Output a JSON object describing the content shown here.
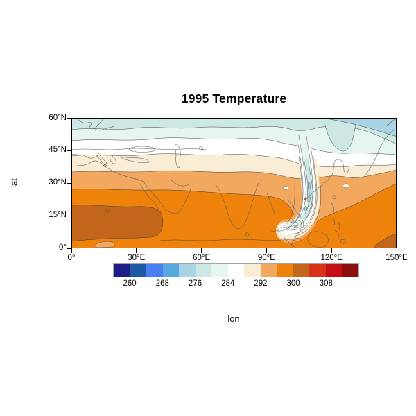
{
  "figure": {
    "title": "1995 Temperature",
    "xlabel": "lon",
    "ylabel": "lat"
  },
  "axes": {
    "x_ticks": [
      {
        "label": "0°",
        "lon": 0
      },
      {
        "label": "30°E",
        "lon": 30
      },
      {
        "label": "60°E",
        "lon": 60
      },
      {
        "label": "90°E",
        "lon": 90
      },
      {
        "label": "120°E",
        "lon": 120
      },
      {
        "label": "150°E",
        "lon": 150
      }
    ],
    "y_ticks": [
      {
        "label": "0°",
        "lat": 0
      },
      {
        "label": "15°N",
        "lat": 15
      },
      {
        "label": "30°N",
        "lat": 30
      },
      {
        "label": "45°N",
        "lat": 45
      },
      {
        "label": "60°N",
        "lat": 60
      }
    ]
  },
  "colorbar": {
    "labels": [
      "260",
      "268",
      "276",
      "284",
      "292",
      "300",
      "308"
    ],
    "levels": [
      256,
      260,
      264,
      268,
      272,
      276,
      280,
      284,
      288,
      292,
      296,
      300,
      304,
      308,
      312,
      316
    ],
    "colors": [
      "#1f1d87",
      "#1c5ba3",
      "#4a7ef2",
      "#57a9e0",
      "#aad3e5",
      "#cde8e4",
      "#e7f5f1",
      "#ffffff",
      "#f9edd5",
      "#f3a860",
      "#ee820a",
      "#c2661c",
      "#d93019",
      "#c50d15",
      "#8c0f0e"
    ]
  },
  "chart_data": {
    "type": "heatmap",
    "subtype": "filled-contour-map",
    "title": "1995 Temperature",
    "xlabel": "lon",
    "ylabel": "lat",
    "xlim": [
      0,
      150
    ],
    "ylim": [
      0,
      60
    ],
    "x_tick_labels": [
      "0°",
      "30°E",
      "60°E",
      "90°E",
      "120°E",
      "150°E"
    ],
    "y_tick_labels": [
      "0°",
      "15°N",
      "30°N",
      "45°N",
      "60°N"
    ],
    "contour_levels": [
      256,
      260,
      264,
      268,
      272,
      276,
      280,
      284,
      288,
      292,
      296,
      300,
      304,
      308,
      312,
      316
    ],
    "colorbar_tick_labels": [
      260,
      268,
      276,
      284,
      292,
      300,
      308
    ],
    "palette": [
      "#1f1d87",
      "#1c5ba3",
      "#4a7ef2",
      "#57a9e0",
      "#aad3e5",
      "#cde8e4",
      "#e7f5f1",
      "#ffffff",
      "#f9edd5",
      "#f3a860",
      "#ee820a",
      "#c2661c",
      "#d93019",
      "#c50d15",
      "#8c0f0e"
    ],
    "legend_position": "bottom",
    "grid": false,
    "coastlines_overlaid": true,
    "latitudinal_bands": [
      {
        "lat_range": "55-60N",
        "value": "276-280"
      },
      {
        "lat_range": "50-55N",
        "value": "280-284"
      },
      {
        "lat_range": "42-50N",
        "value": "284-288"
      },
      {
        "lat_range": "36-42N",
        "value": "288-292"
      },
      {
        "lat_range": "27-36N",
        "value": "292-296"
      },
      {
        "lat_range": "18-27N",
        "value": "296-300"
      },
      {
        "lat_range": "5-18N lon 0-40E",
        "value": "300-304"
      },
      {
        "lat_range": "0-18N lon 40-150E",
        "value": "296-300"
      }
    ],
    "notable_features": [
      {
        "name": "meridional cold tongue",
        "lon_range": "100-118E",
        "lat_range": "8-50N",
        "value": "268-288"
      },
      {
        "name": "cooler corner band",
        "lon_range": "115-150E",
        "lat_range": "55-60N",
        "value": "272-276"
      },
      {
        "name": "warm pocket bottom-right corner",
        "lon_range": "140-150E",
        "lat_range": "0-6N",
        "value": "300-304"
      }
    ]
  }
}
